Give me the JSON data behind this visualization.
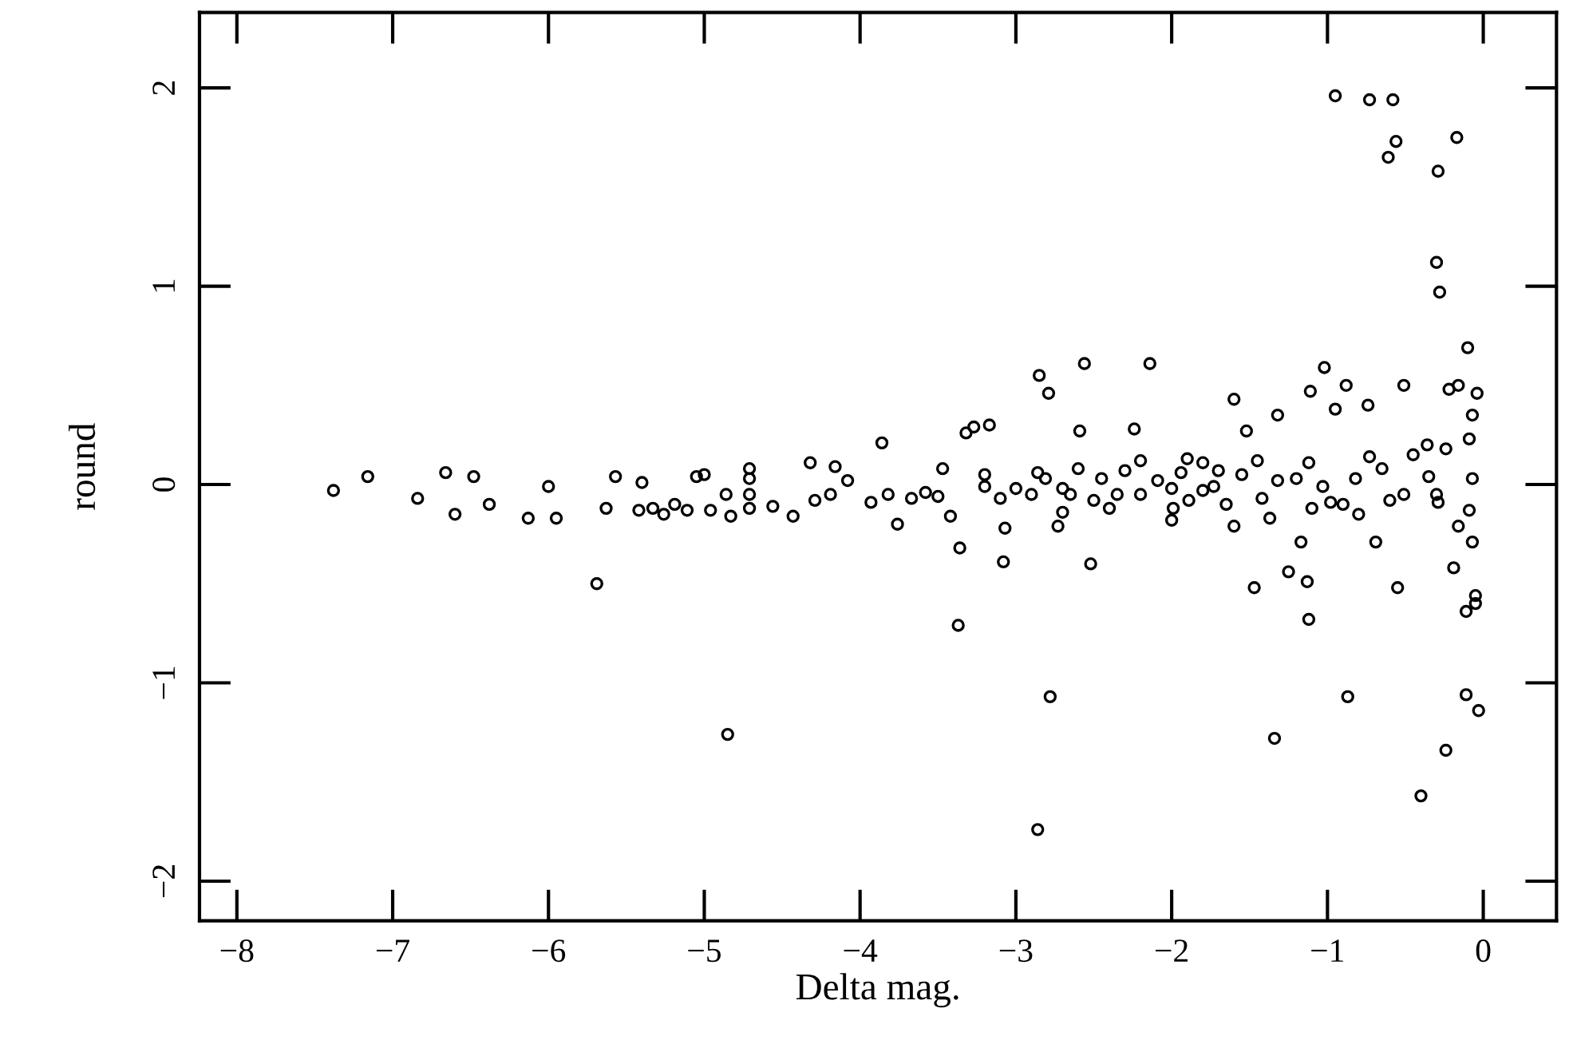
{
  "chart_data": {
    "type": "scatter",
    "xlabel": "Delta mag.",
    "ylabel": "round",
    "xlim": [
      -8.24,
      0.47
    ],
    "ylim": [
      -2.2,
      2.38
    ],
    "xticks": [
      -8,
      -7,
      -6,
      -5,
      -4,
      -3,
      -2,
      -1,
      0
    ],
    "yticks": [
      -2,
      -1,
      0,
      1,
      2
    ],
    "grid": false,
    "marker": "circle",
    "series": [
      {
        "color": "#000000",
        "x": [
          -7.38,
          -7.16,
          -6.84,
          -6.66,
          -6.6,
          -6.48,
          -6.38,
          -6.13,
          -6.0,
          -5.95,
          -5.69,
          -5.63,
          -5.57,
          -5.42,
          -5.4,
          -5.33,
          -5.26,
          -5.19,
          -5.11,
          -5.05,
          -5.0,
          -4.96,
          -4.86,
          -4.85,
          -4.83,
          -4.71,
          -4.71,
          -4.71,
          -4.71,
          -4.56,
          -4.43,
          -4.32,
          -4.29,
          -4.19,
          -4.16,
          -4.08,
          -3.86,
          -3.93,
          -3.82,
          -3.76,
          -3.67,
          -3.58,
          -3.47,
          -3.42,
          -3.36,
          -3.37,
          -3.32,
          -3.27,
          -3.2,
          -3.17,
          -3.07,
          -3.0,
          -2.86,
          -2.85,
          -2.79,
          -2.73,
          -2.78,
          -2.86,
          -2.81,
          -2.65,
          -2.59,
          -2.56,
          -2.45,
          -2.35,
          -2.24,
          -2.14,
          -2.2,
          -2.09,
          -1.99,
          -1.94,
          -1.89,
          -1.8,
          -1.73,
          -1.6,
          -1.6,
          -1.52,
          -1.42,
          -1.37,
          -1.32,
          -1.32,
          -1.47,
          -1.34,
          -1.25,
          -1.17,
          -1.12,
          -1.12,
          -1.13,
          -1.11,
          -1.03,
          -1.02,
          -0.95,
          -0.98,
          -0.87,
          -0.95,
          -0.88,
          -0.82,
          -0.73,
          -0.74,
          -0.73,
          -0.69,
          -0.6,
          -0.58,
          -0.56,
          -0.61,
          -0.55,
          -0.51,
          -0.51,
          -0.4,
          -0.36,
          -0.35,
          -0.29,
          -0.3,
          -0.29,
          -0.28,
          -0.24,
          -0.17,
          -0.22,
          -0.24,
          -0.19,
          -0.16,
          -0.16,
          -0.11,
          -0.11,
          -0.1,
          -0.03,
          -0.05,
          -0.05,
          -0.07,
          -0.07,
          -0.09,
          -0.04,
          -0.09,
          -0.07,
          -2.9,
          -2.7,
          -2.6,
          -2.5,
          -2.4,
          -2.3,
          -2.2,
          -2.0,
          -1.9,
          -1.7,
          -1.65,
          -1.55,
          -1.45,
          -1.2,
          -1.1,
          -0.9,
          -0.8,
          -0.65,
          -0.45,
          -0.3,
          -3.5,
          -3.2,
          -3.1,
          -2.0,
          -1.8,
          -2.7,
          -3.08,
          -2.52
        ],
        "values": [
          -0.03,
          0.04,
          -0.07,
          0.06,
          -0.15,
          0.04,
          -0.1,
          -0.17,
          -0.01,
          -0.17,
          -0.5,
          -0.12,
          0.04,
          -0.13,
          0.01,
          -0.12,
          -0.15,
          -0.1,
          -0.13,
          0.04,
          0.05,
          -0.13,
          -0.05,
          -1.26,
          -0.16,
          0.08,
          0.03,
          -0.05,
          -0.12,
          -0.11,
          -0.16,
          0.11,
          -0.08,
          -0.05,
          0.09,
          0.02,
          0.21,
          -0.09,
          -0.05,
          -0.2,
          -0.07,
          -0.04,
          0.08,
          -0.16,
          -0.32,
          -0.71,
          0.26,
          0.29,
          -0.01,
          0.3,
          -0.22,
          -0.02,
          0.06,
          0.55,
          0.46,
          -0.21,
          -1.07,
          -1.74,
          0.03,
          -0.05,
          0.27,
          0.61,
          0.03,
          -0.05,
          0.28,
          0.61,
          -0.05,
          0.02,
          -0.12,
          0.06,
          -0.08,
          0.11,
          -0.01,
          -0.21,
          0.43,
          0.27,
          -0.07,
          -0.17,
          0.35,
          0.02,
          -0.52,
          -1.28,
          -0.44,
          -0.29,
          0.11,
          -0.68,
          -0.49,
          0.47,
          -0.01,
          0.59,
          0.38,
          -0.09,
          -1.07,
          1.96,
          0.5,
          0.03,
          0.14,
          0.4,
          1.94,
          -0.29,
          -0.08,
          1.94,
          1.73,
          1.65,
          -0.52,
          -0.05,
          0.5,
          -1.57,
          0.2,
          0.04,
          -0.09,
          1.12,
          1.58,
          0.97,
          -1.34,
          1.75,
          0.48,
          0.18,
          -0.42,
          0.5,
          -0.21,
          -0.64,
          -1.06,
          0.69,
          -1.14,
          -0.56,
          -0.6,
          0.35,
          0.03,
          -0.13,
          0.46,
          0.23,
          -0.29,
          -0.05,
          -0.02,
          0.08,
          -0.08,
          -0.12,
          0.07,
          0.12,
          -0.02,
          0.13,
          0.07,
          -0.1,
          0.05,
          0.12,
          0.03,
          -0.12,
          -0.1,
          -0.15,
          0.08,
          0.15,
          -0.05,
          -0.06,
          0.05,
          -0.07,
          -0.18,
          -0.03,
          -0.14,
          -0.39,
          -0.4
        ]
      }
    ]
  }
}
